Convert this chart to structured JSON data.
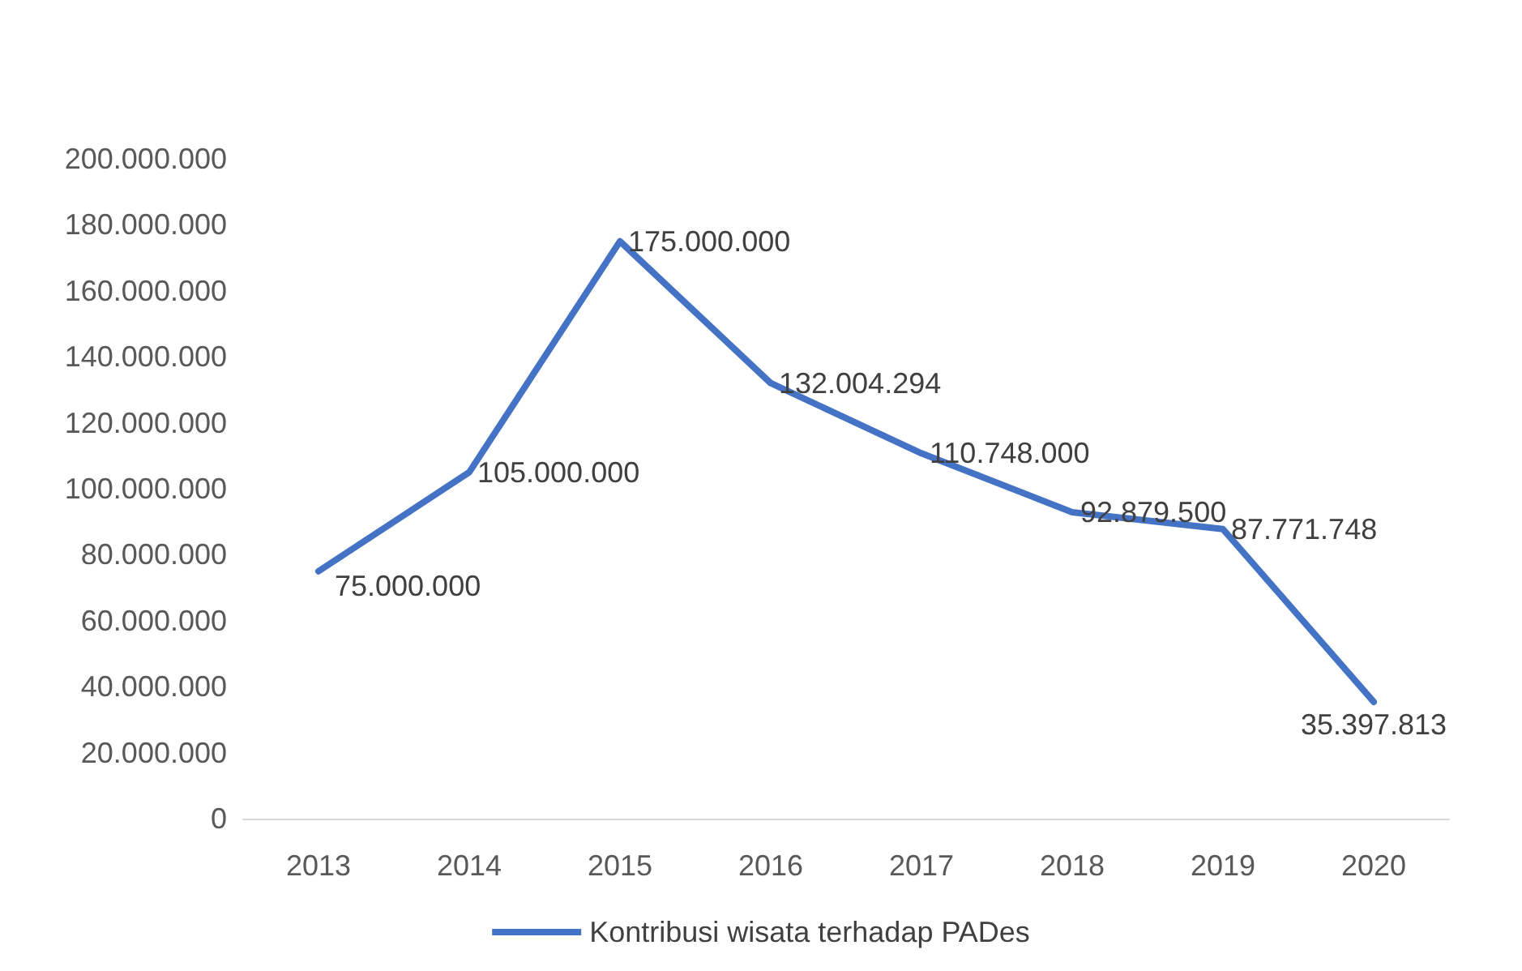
{
  "chart_data": {
    "type": "line",
    "categories": [
      "2013",
      "2014",
      "2015",
      "2016",
      "2017",
      "2018",
      "2019",
      "2020"
    ],
    "series": [
      {
        "name": "Kontribusi wisata terhadap PADes",
        "color": "#4472c4",
        "values": [
          75000000,
          105000000,
          175000000,
          132004294,
          110748000,
          92879500,
          87771748,
          35397813
        ],
        "value_labels": [
          "75.000.000",
          "105.000.000",
          "175.000.000",
          "132.004.294",
          "110.748.000",
          "92.879.500",
          "87.771.748",
          "35.397.813"
        ]
      }
    ],
    "ylim": [
      0,
      200000000
    ],
    "yticks": [
      {
        "value": 0,
        "label": "0"
      },
      {
        "value": 20000000,
        "label": "20.000.000"
      },
      {
        "value": 40000000,
        "label": "40.000.000"
      },
      {
        "value": 60000000,
        "label": "60.000.000"
      },
      {
        "value": 80000000,
        "label": "80.000.000"
      },
      {
        "value": 100000000,
        "label": "100.000.000"
      },
      {
        "value": 120000000,
        "label": "120.000.000"
      },
      {
        "value": 140000000,
        "label": "140.000.000"
      },
      {
        "value": 160000000,
        "label": "160.000.000"
      },
      {
        "value": 180000000,
        "label": "180.000.000"
      },
      {
        "value": 200000000,
        "label": "200.000.000"
      }
    ],
    "grid": false,
    "legend": "bottom",
    "marker": "none",
    "line_style": "solid"
  }
}
